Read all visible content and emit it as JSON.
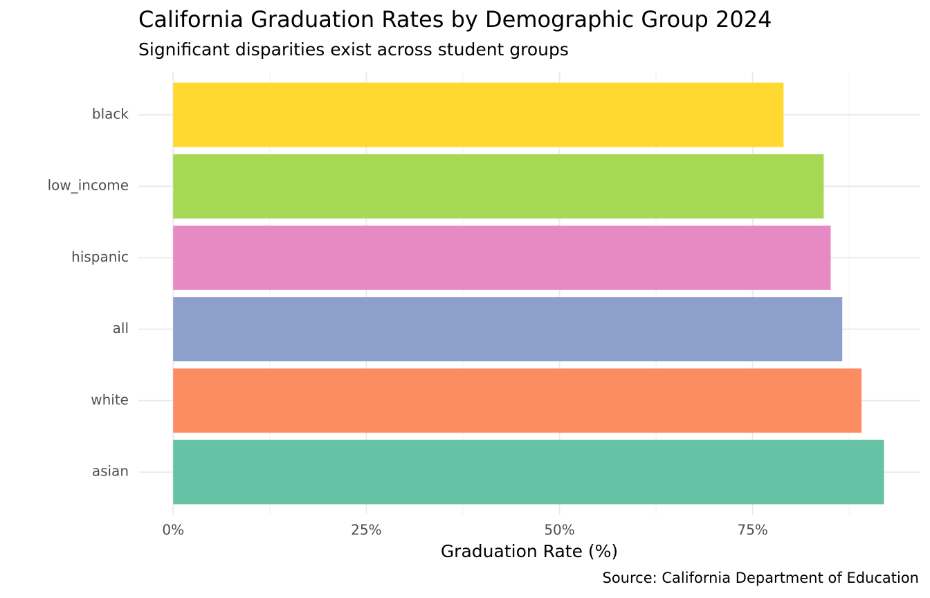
{
  "chart_data": {
    "type": "bar",
    "orientation": "horizontal",
    "title": "California Graduation Rates by Demographic Group 2024",
    "subtitle": "Significant disparities exist across student groups",
    "x_label": "Graduation Rate (%)",
    "caption": "Source: California Department of Education",
    "categories": [
      "black",
      "low_income",
      "hispanic",
      "all",
      "white",
      "asian"
    ],
    "values": [
      79.0,
      84.2,
      85.1,
      86.6,
      89.1,
      92.0
    ],
    "colors": [
      "#FFD92F",
      "#A6D854",
      "#E78AC3",
      "#8DA0CB",
      "#FC8D62",
      "#66C2A5"
    ],
    "xlim": [
      -4.5,
      96.7
    ],
    "xticks": [
      {
        "value": 0,
        "label": "0%"
      },
      {
        "value": 25,
        "label": "25%"
      },
      {
        "value": 50,
        "label": "50%"
      },
      {
        "value": 75,
        "label": "75%"
      }
    ],
    "x_minor_grid": [
      12.5,
      37.5,
      62.5,
      87.5
    ],
    "grid": true
  }
}
